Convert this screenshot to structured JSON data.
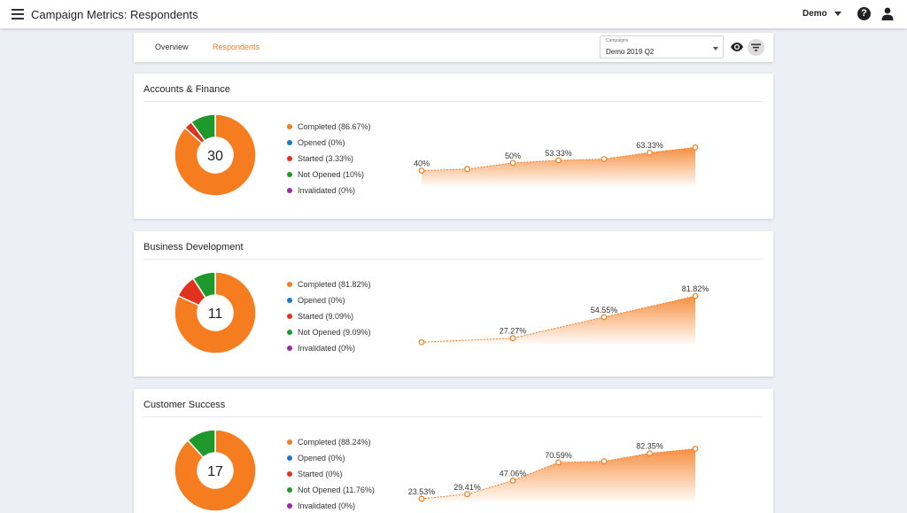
{
  "header": {
    "app_title": "Campaign Metrics: Respondents",
    "user_label": "Demo",
    "icons": {
      "menu": "menu-icon",
      "help": "help-icon",
      "account": "account-icon"
    }
  },
  "tabs": [
    {
      "label": "Overview",
      "active": false
    },
    {
      "label": "Respondents",
      "active": true
    }
  ],
  "campaign_select": {
    "label": "Campaigns",
    "value": "Demo 2019 Q2"
  },
  "colors": {
    "completed": "#f57c1f",
    "opened": "#1f77c8",
    "started": "#e0321c",
    "not_opened": "#1e9a2d",
    "invalidated": "#9c27b0",
    "accent": "#f57c1f"
  },
  "departments": [
    {
      "name": "Accounts & Finance",
      "total": "30",
      "legend": [
        {
          "label": "Completed (86.67%)",
          "key": "completed",
          "value": 86.67
        },
        {
          "label": "Opened (0%)",
          "key": "opened",
          "value": 0
        },
        {
          "label": "Started (3.33%)",
          "key": "started",
          "value": 3.33
        },
        {
          "label": "Not Opened (10%)",
          "key": "not_opened",
          "value": 10
        },
        {
          "label": "Invalidated (0%)",
          "key": "invalidated",
          "value": 0
        }
      ],
      "trend": [
        {
          "value": 40,
          "label": "40%"
        },
        {
          "value": 42,
          "label": ""
        },
        {
          "value": 50,
          "label": "50%"
        },
        {
          "value": 53.33,
          "label": "53.33%"
        },
        {
          "value": 55,
          "label": ""
        },
        {
          "value": 63.33,
          "label": "63.33%"
        },
        {
          "value": 70,
          "label": ""
        }
      ]
    },
    {
      "name": "Business Development",
      "total": "11",
      "legend": [
        {
          "label": "Completed (81.82%)",
          "key": "completed",
          "value": 81.82
        },
        {
          "label": "Opened (0%)",
          "key": "opened",
          "value": 0
        },
        {
          "label": "Started (9.09%)",
          "key": "started",
          "value": 9.09
        },
        {
          "label": "Not Opened (9.09%)",
          "key": "not_opened",
          "value": 9.09
        },
        {
          "label": "Invalidated (0%)",
          "key": "invalidated",
          "value": 0
        }
      ],
      "trend": [
        {
          "value": 22,
          "label": ""
        },
        {
          "value": 27.27,
          "label": "27.27%"
        },
        {
          "value": 54.55,
          "label": "54.55%"
        },
        {
          "value": 81.82,
          "label": "81.82%"
        }
      ]
    },
    {
      "name": "Customer Success",
      "total": "17",
      "legend": [
        {
          "label": "Completed (88.24%)",
          "key": "completed",
          "value": 88.24
        },
        {
          "label": "Opened (0%)",
          "key": "opened",
          "value": 0
        },
        {
          "label": "Started (0%)",
          "key": "started",
          "value": 0
        },
        {
          "label": "Not Opened (11.76%)",
          "key": "not_opened",
          "value": 11.76
        },
        {
          "label": "Invalidated (0%)",
          "key": "invalidated",
          "value": 0
        }
      ],
      "trend": [
        {
          "value": 23.53,
          "label": "23.53%"
        },
        {
          "value": 29.41,
          "label": "29.41%"
        },
        {
          "value": 47.06,
          "label": "47.06%"
        },
        {
          "value": 70.59,
          "label": "70.59%"
        },
        {
          "value": 72,
          "label": ""
        },
        {
          "value": 82.35,
          "label": "82.35%"
        },
        {
          "value": 88.24,
          "label": ""
        }
      ]
    }
  ]
}
